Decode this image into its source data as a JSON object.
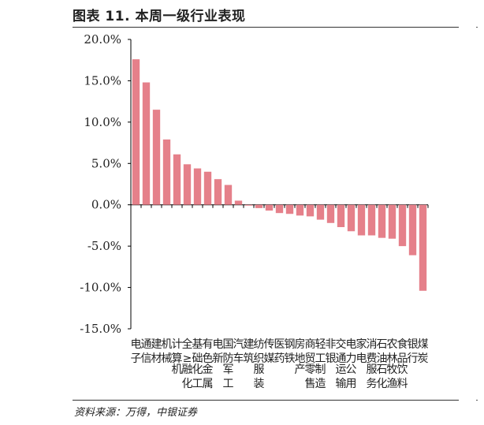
{
  "figure": {
    "title": "图表 11. 本周一级行业表现",
    "source": "资料来源：万得，中银证券"
  },
  "colors": {
    "bar": "#e5808a",
    "axis": "#000000",
    "text": "#222222"
  },
  "chart_data": {
    "type": "bar",
    "title": "",
    "xlabel": "",
    "ylabel": "",
    "ylim": [
      -15,
      20
    ],
    "yticks": [
      -15,
      -10,
      -5,
      0,
      5,
      10,
      15,
      20
    ],
    "ytick_labels": [
      "-15.0%",
      "-10.0%",
      "-5.0%",
      "0.0%",
      "5.0%",
      "10.0%",
      "15.0%",
      "20.0%"
    ],
    "grid": false,
    "legend": "none",
    "categories": [
      "电子",
      "通信",
      "建材",
      "机械",
      "计算机",
      "全融化工",
      "基础化工",
      "有色金属",
      "电新",
      "国防军工",
      "汽车",
      "建筑",
      "纺织服装",
      "传媒",
      "医药",
      "钢铁",
      "房地产",
      "商贸零售",
      "轻工制造",
      "非银",
      "交通运输",
      "电力公用",
      "家电",
      "消费服务",
      "石油石化",
      "农林牧渔",
      "食品饮料",
      "银行",
      "煤炭"
    ],
    "category_labels": [
      "电子",
      "通信",
      "建材",
      "机械",
      "计算机",
      "全≥融化工",
      "基础化工",
      "有色金属",
      "电新",
      "国防军工",
      "汽车",
      "建筑",
      "纺织服装",
      "传媒",
      "医药",
      "钢铁",
      "房地产",
      "商贸零售",
      "轻工制造",
      "非银",
      "交通运输",
      "电力公用",
      "家电",
      "消费服务",
      "石油石化",
      "农林牧渔",
      "食品饮料",
      "银行",
      "煤炭"
    ],
    "values": [
      17.6,
      14.8,
      11.5,
      7.9,
      6.1,
      4.9,
      4.4,
      4.0,
      3.1,
      2.4,
      0.5,
      -0.1,
      -0.4,
      -0.7,
      -1.0,
      -1.1,
      -1.3,
      -1.4,
      -1.8,
      -2.2,
      -2.7,
      -3.2,
      -3.7,
      -3.7,
      -4.0,
      -4.1,
      -5.0,
      -6.1,
      -10.4
    ]
  }
}
